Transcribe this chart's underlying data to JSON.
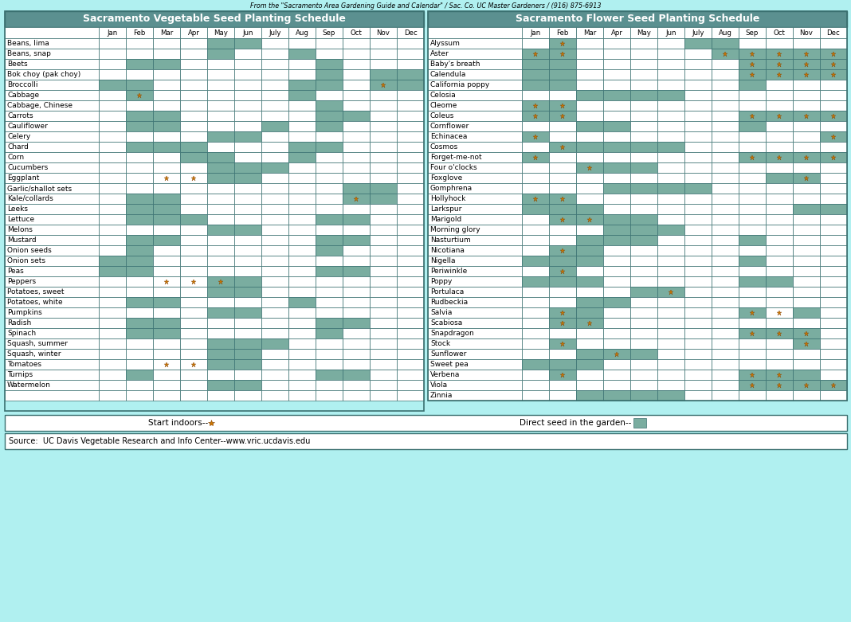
{
  "veg_title": "Sacramento Vegetable Seed Planting Schedule",
  "flower_title": "Sacramento Flower Seed Planting Schedule",
  "top_note": "From the \"Sacramento Area Gardening Guide and Calendar\" / Sac. Co. UC Master Gardeners / (916) 875-6913",
  "bottom_source": "Source:  UC Davis Vegetable Research and Info Center--www.vric.ucdavis.edu",
  "months": [
    "Jan",
    "Feb",
    "Mar",
    "Apr",
    "May",
    "Jun",
    "July",
    "Aug",
    "Sep",
    "Oct",
    "Nov",
    "Dec"
  ],
  "bg_color": "#b0f0f0",
  "header_bg": "#5b9090",
  "cell_filled": "#7aada0",
  "cell_empty": "#ffffff",
  "border_color": "#3a7070",
  "star_color": "#cc7700",
  "star_edge": "#884400",
  "vegetables": [
    "Beans, lima",
    "Beans, snap",
    "Beets",
    "Bok choy (pak choy)",
    "Broccolli",
    "Cabbage",
    "Cabbage, Chinese",
    "Carrots",
    "Cauliflower",
    "Celery",
    "Chard",
    "Corn",
    "Cucumbers",
    "Eggplant",
    "Garlic/shallot sets",
    "Kale/collards",
    "Leeks",
    "Lettuce",
    "Melons",
    "Mustard",
    "Onion seeds",
    "Onion sets",
    "Peas",
    "Peppers",
    "Potatoes, sweet",
    "Potatoes, white",
    "Pumpkins",
    "Radish",
    "Spinach",
    "Squash, summer",
    "Squash, winter",
    "Tomatoes",
    "Turnips",
    "Watermelon"
  ],
  "veg_data": {
    "Beans, lima": [
      0,
      0,
      0,
      0,
      1,
      1,
      0,
      0,
      0,
      0,
      0,
      0
    ],
    "Beans, snap": [
      0,
      0,
      0,
      0,
      1,
      0,
      0,
      1,
      0,
      0,
      0,
      0
    ],
    "Beets": [
      0,
      1,
      1,
      0,
      0,
      0,
      0,
      0,
      1,
      0,
      0,
      0
    ],
    "Bok choy (pak choy)": [
      0,
      0,
      0,
      0,
      0,
      0,
      0,
      0,
      1,
      0,
      1,
      1
    ],
    "Broccolli": [
      1,
      1,
      0,
      0,
      0,
      0,
      0,
      1,
      1,
      0,
      1,
      1
    ],
    "Cabbage": [
      0,
      1,
      0,
      0,
      0,
      0,
      0,
      1,
      0,
      0,
      0,
      0
    ],
    "Cabbage, Chinese": [
      0,
      0,
      0,
      0,
      0,
      0,
      0,
      0,
      1,
      0,
      0,
      0
    ],
    "Carrots": [
      0,
      1,
      1,
      0,
      0,
      0,
      0,
      0,
      1,
      1,
      0,
      0
    ],
    "Cauliflower": [
      0,
      1,
      1,
      0,
      0,
      0,
      1,
      0,
      1,
      0,
      0,
      0
    ],
    "Celery": [
      0,
      0,
      0,
      0,
      1,
      1,
      0,
      0,
      0,
      0,
      0,
      0
    ],
    "Chard": [
      0,
      1,
      1,
      1,
      0,
      0,
      0,
      1,
      1,
      0,
      0,
      0
    ],
    "Corn": [
      0,
      0,
      0,
      1,
      1,
      0,
      0,
      1,
      0,
      0,
      0,
      0
    ],
    "Cucumbers": [
      0,
      0,
      0,
      0,
      1,
      1,
      1,
      0,
      0,
      0,
      0,
      0
    ],
    "Eggplant": [
      0,
      0,
      0,
      0,
      1,
      1,
      0,
      0,
      0,
      0,
      0,
      0
    ],
    "Garlic/shallot sets": [
      0,
      0,
      0,
      0,
      0,
      0,
      0,
      0,
      0,
      1,
      1,
      0
    ],
    "Kale/collards": [
      0,
      1,
      1,
      0,
      0,
      0,
      0,
      0,
      0,
      1,
      1,
      0
    ],
    "Leeks": [
      0,
      1,
      1,
      0,
      0,
      0,
      0,
      0,
      0,
      0,
      0,
      0
    ],
    "Lettuce": [
      0,
      1,
      1,
      1,
      0,
      0,
      0,
      0,
      1,
      1,
      0,
      0
    ],
    "Melons": [
      0,
      0,
      0,
      0,
      1,
      1,
      0,
      0,
      0,
      0,
      0,
      0
    ],
    "Mustard": [
      0,
      1,
      1,
      0,
      0,
      0,
      0,
      0,
      1,
      1,
      0,
      0
    ],
    "Onion seeds": [
      0,
      1,
      0,
      0,
      0,
      0,
      0,
      0,
      1,
      0,
      0,
      0
    ],
    "Onion sets": [
      1,
      1,
      0,
      0,
      0,
      0,
      0,
      0,
      0,
      0,
      0,
      0
    ],
    "Peas": [
      1,
      1,
      0,
      0,
      0,
      0,
      0,
      0,
      1,
      1,
      0,
      0
    ],
    "Peppers": [
      0,
      0,
      0,
      0,
      1,
      1,
      0,
      0,
      0,
      0,
      0,
      0
    ],
    "Potatoes, sweet": [
      0,
      0,
      0,
      0,
      1,
      1,
      0,
      0,
      0,
      0,
      0,
      0
    ],
    "Potatoes, white": [
      0,
      1,
      1,
      0,
      0,
      0,
      0,
      1,
      0,
      0,
      0,
      0
    ],
    "Pumpkins": [
      0,
      0,
      0,
      0,
      1,
      1,
      0,
      0,
      0,
      0,
      0,
      0
    ],
    "Radish": [
      0,
      1,
      1,
      0,
      0,
      0,
      0,
      0,
      1,
      1,
      0,
      0
    ],
    "Spinach": [
      0,
      1,
      1,
      0,
      0,
      0,
      0,
      0,
      1,
      0,
      0,
      0
    ],
    "Squash, summer": [
      0,
      0,
      0,
      0,
      1,
      1,
      1,
      0,
      0,
      0,
      0,
      0
    ],
    "Squash, winter": [
      0,
      0,
      0,
      0,
      1,
      1,
      0,
      0,
      0,
      0,
      0,
      0
    ],
    "Tomatoes": [
      0,
      0,
      0,
      0,
      1,
      1,
      0,
      0,
      0,
      0,
      0,
      0
    ],
    "Turnips": [
      0,
      1,
      0,
      0,
      0,
      0,
      0,
      0,
      1,
      1,
      0,
      0
    ],
    "Watermelon": [
      0,
      0,
      0,
      0,
      1,
      1,
      0,
      0,
      0,
      0,
      0,
      0
    ]
  },
  "veg_stars": {
    "Broccolli": [
      10
    ],
    "Cabbage": [
      1
    ],
    "Eggplant": [
      2,
      3
    ],
    "Kale/collards": [
      9
    ],
    "Peppers": [
      2,
      3,
      4
    ],
    "Tomatoes": [
      2,
      3
    ]
  },
  "flowers": [
    "Alyssum",
    "Aster",
    "Baby's breath",
    "Calendula",
    "California poppy",
    "Celosia",
    "Cleome",
    "Coleus",
    "Cornflower",
    "Echinacea",
    "Cosmos",
    "Forget-me-not",
    "Four o'clocks",
    "Foxglove",
    "Gomphrena",
    "Hollyhock",
    "Larkspur",
    "Marigold",
    "Morning glory",
    "Nasturtium",
    "Nicotiana",
    "Nigella",
    "Periwinkle",
    "Poppy",
    "Portulaca",
    "Rudbeckia",
    "Salvia",
    "Scabiosa",
    "Snapdragon",
    "Stock",
    "Sunflower",
    "Sweet pea",
    "Verbena",
    "Viola",
    "Zinnia"
  ],
  "flower_data": {
    "Alyssum": [
      0,
      1,
      0,
      0,
      0,
      0,
      1,
      1,
      0,
      0,
      0,
      0
    ],
    "Aster": [
      1,
      1,
      0,
      0,
      0,
      0,
      0,
      1,
      1,
      1,
      1,
      1
    ],
    "Baby's breath": [
      1,
      1,
      0,
      0,
      0,
      0,
      0,
      0,
      1,
      1,
      1,
      1
    ],
    "Calendula": [
      1,
      1,
      0,
      0,
      0,
      0,
      0,
      0,
      1,
      1,
      1,
      1
    ],
    "California poppy": [
      1,
      1,
      0,
      0,
      0,
      0,
      0,
      0,
      1,
      0,
      0,
      0
    ],
    "Celosia": [
      0,
      0,
      1,
      1,
      1,
      1,
      0,
      0,
      0,
      0,
      0,
      0
    ],
    "Cleome": [
      1,
      1,
      0,
      0,
      0,
      0,
      0,
      0,
      0,
      0,
      0,
      0
    ],
    "Coleus": [
      1,
      1,
      0,
      0,
      0,
      0,
      0,
      0,
      1,
      1,
      1,
      1
    ],
    "Cornflower": [
      0,
      0,
      1,
      1,
      0,
      0,
      0,
      0,
      1,
      0,
      0,
      0
    ],
    "Echinacea": [
      1,
      0,
      0,
      0,
      0,
      0,
      0,
      0,
      0,
      0,
      0,
      1
    ],
    "Cosmos": [
      0,
      1,
      1,
      1,
      1,
      1,
      0,
      0,
      0,
      0,
      0,
      0
    ],
    "Forget-me-not": [
      1,
      0,
      0,
      0,
      0,
      0,
      0,
      0,
      1,
      1,
      1,
      1
    ],
    "Four o'clocks": [
      0,
      0,
      1,
      1,
      1,
      0,
      0,
      0,
      0,
      0,
      0,
      0
    ],
    "Foxglove": [
      0,
      0,
      0,
      0,
      0,
      0,
      0,
      0,
      0,
      1,
      1,
      0
    ],
    "Gomphrena": [
      0,
      0,
      0,
      1,
      1,
      1,
      1,
      0,
      0,
      0,
      0,
      0
    ],
    "Hollyhock": [
      1,
      1,
      0,
      0,
      0,
      0,
      0,
      0,
      0,
      0,
      0,
      0
    ],
    "Larkspur": [
      1,
      1,
      1,
      0,
      0,
      0,
      0,
      0,
      0,
      0,
      1,
      1
    ],
    "Marigold": [
      0,
      1,
      1,
      1,
      1,
      0,
      0,
      0,
      0,
      0,
      0,
      0
    ],
    "Morning glory": [
      0,
      0,
      0,
      1,
      1,
      1,
      0,
      0,
      0,
      0,
      0,
      0
    ],
    "Nasturtium": [
      0,
      0,
      1,
      1,
      1,
      0,
      0,
      0,
      1,
      0,
      0,
      0
    ],
    "Nicotiana": [
      0,
      1,
      1,
      0,
      0,
      0,
      0,
      0,
      0,
      0,
      0,
      0
    ],
    "Nigella": [
      1,
      1,
      1,
      0,
      0,
      0,
      0,
      0,
      1,
      0,
      0,
      0
    ],
    "Periwinkle": [
      0,
      1,
      0,
      0,
      0,
      0,
      0,
      0,
      0,
      0,
      0,
      0
    ],
    "Poppy": [
      1,
      1,
      1,
      0,
      0,
      0,
      0,
      0,
      1,
      1,
      0,
      0
    ],
    "Portulaca": [
      0,
      0,
      0,
      0,
      1,
      1,
      0,
      0,
      0,
      0,
      0,
      0
    ],
    "Rudbeckia": [
      0,
      0,
      1,
      1,
      0,
      0,
      0,
      0,
      0,
      0,
      0,
      0
    ],
    "Salvia": [
      0,
      1,
      1,
      0,
      0,
      0,
      0,
      0,
      1,
      0,
      1,
      0
    ],
    "Scabiosa": [
      0,
      1,
      1,
      0,
      0,
      0,
      0,
      0,
      0,
      0,
      0,
      0
    ],
    "Snapdragon": [
      0,
      0,
      0,
      0,
      0,
      0,
      0,
      0,
      1,
      1,
      1,
      0
    ],
    "Stock": [
      0,
      1,
      0,
      0,
      0,
      0,
      0,
      0,
      0,
      0,
      1,
      0
    ],
    "Sunflower": [
      0,
      0,
      1,
      1,
      1,
      0,
      0,
      0,
      0,
      0,
      0,
      0
    ],
    "Sweet pea": [
      1,
      1,
      1,
      0,
      0,
      0,
      0,
      0,
      0,
      0,
      0,
      0
    ],
    "Verbena": [
      0,
      1,
      0,
      0,
      0,
      0,
      0,
      0,
      1,
      1,
      1,
      0
    ],
    "Viola": [
      0,
      0,
      0,
      0,
      0,
      0,
      0,
      0,
      1,
      1,
      1,
      1
    ],
    "Zinnia": [
      0,
      0,
      1,
      1,
      1,
      1,
      0,
      0,
      0,
      0,
      0,
      0
    ]
  },
  "flower_stars": {
    "Alyssum": [
      1
    ],
    "Aster": [
      0,
      1,
      7,
      8,
      9,
      10,
      11
    ],
    "Baby's breath": [
      8,
      9,
      10,
      11
    ],
    "Calendula": [
      8,
      9,
      10,
      11
    ],
    "Cleome": [
      0,
      1
    ],
    "Coleus": [
      0,
      1,
      8,
      9,
      10,
      11
    ],
    "Echinacea": [
      0,
      11
    ],
    "Cosmos": [
      1
    ],
    "Forget-me-not": [
      0,
      8,
      9,
      10,
      11
    ],
    "Four o'clocks": [
      2
    ],
    "Foxglove": [
      10
    ],
    "Hollyhock": [
      0,
      1
    ],
    "Marigold": [
      1,
      2
    ],
    "Nicotiana": [
      1
    ],
    "Periwinkle": [
      1
    ],
    "Portulaca": [
      5
    ],
    "Salvia": [
      1,
      8,
      9
    ],
    "Scabiosa": [
      1,
      2
    ],
    "Snapdragon": [
      8,
      9,
      10
    ],
    "Stock": [
      1,
      10
    ],
    "Sunflower": [
      3
    ],
    "Verbena": [
      1,
      8,
      9
    ],
    "Viola": [
      8,
      9,
      10,
      11
    ]
  }
}
